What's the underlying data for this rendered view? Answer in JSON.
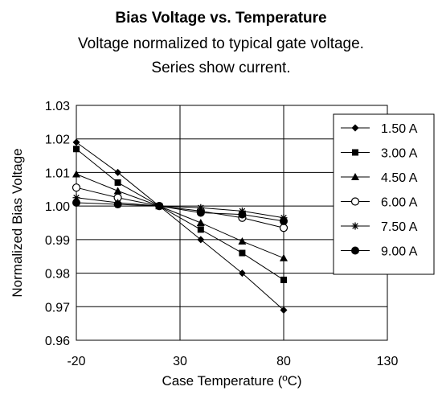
{
  "chart_data": {
    "type": "line",
    "title": "Bias Voltage vs. Temperature",
    "subtitle_lines": [
      "Voltage normalized to typical gate voltage.",
      "Series show current."
    ],
    "xlabel": "Case Temperature (ºC)",
    "ylabel": "Normalized Bias Voltage",
    "xlim": [
      -20,
      130
    ],
    "ylim": [
      0.96,
      1.03
    ],
    "xticks": [
      -20,
      30,
      80,
      130
    ],
    "xtick_labels": [
      "-20",
      "30",
      "80",
      "130"
    ],
    "yticks": [
      0.96,
      0.97,
      0.98,
      0.99,
      1.0,
      1.01,
      1.02,
      1.03
    ],
    "ytick_labels": [
      "0.96",
      "0.97",
      "0.98",
      "0.99",
      "1.00",
      "1.01",
      "1.02",
      "1.03"
    ],
    "grid": true,
    "legend_position": "top-right",
    "x": [
      -20,
      0,
      20,
      40,
      60,
      80
    ],
    "series": [
      {
        "name": "1.50 A",
        "marker": "diamond",
        "values": [
          1.019,
          1.01,
          1.0,
          0.99,
          0.98,
          0.969
        ]
      },
      {
        "name": "3.00 A",
        "marker": "square",
        "values": [
          1.017,
          1.007,
          1.0,
          0.993,
          0.986,
          0.978
        ]
      },
      {
        "name": "4.50 A",
        "marker": "triangle",
        "values": [
          1.0095,
          1.0045,
          1.0,
          0.995,
          0.9895,
          0.9845
        ]
      },
      {
        "name": "6.00 A",
        "marker": "circle-open",
        "values": [
          1.0055,
          1.0025,
          1.0,
          0.9985,
          0.9965,
          0.9935
        ]
      },
      {
        "name": "7.50 A",
        "marker": "star",
        "values": [
          1.0025,
          1.001,
          1.0,
          0.9995,
          0.9985,
          0.9965
        ]
      },
      {
        "name": "9.00 A",
        "marker": "circle-filled",
        "values": [
          1.001,
          1.0005,
          1.0,
          0.998,
          0.9975,
          0.9955
        ]
      }
    ],
    "series_color": "#000000"
  }
}
